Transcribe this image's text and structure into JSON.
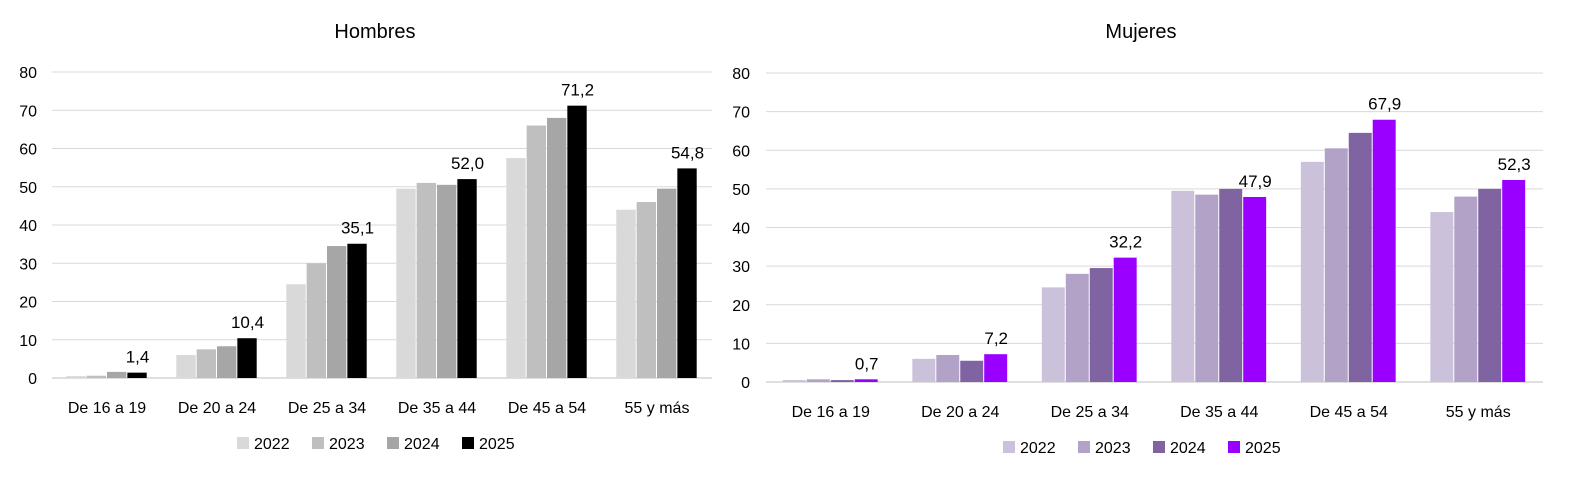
{
  "chart_data": [
    {
      "type": "bar",
      "title": "Hombres",
      "categories": [
        "De 16 a 19",
        "De 20 a 24",
        "De 25 a 34",
        "De 35 a 44",
        "De 45 a 54",
        "55 y más"
      ],
      "ylim": [
        0,
        80
      ],
      "yticks": [
        "0",
        "10",
        "20",
        "30",
        "40",
        "50",
        "60",
        "70",
        "80"
      ],
      "grid": true,
      "legend_position": "bottom",
      "series": [
        {
          "name": "2022",
          "color": "#d9d9d9",
          "values": [
            0.5,
            6.0,
            24.5,
            49.5,
            57.5,
            44.0
          ]
        },
        {
          "name": "2023",
          "color": "#bfbfbf",
          "values": [
            0.6,
            7.5,
            30.0,
            51.0,
            66.0,
            46.0
          ]
        },
        {
          "name": "2024",
          "color": "#a6a6a6",
          "values": [
            1.6,
            8.3,
            34.5,
            50.5,
            68.0,
            49.5
          ]
        },
        {
          "name": "2025",
          "color": "#000000",
          "values": [
            1.4,
            10.4,
            35.1,
            52.0,
            71.2,
            54.8
          ]
        }
      ],
      "data_labels": [
        "1,4",
        "10,4",
        "35,1",
        "52,0",
        "71,2",
        "54,8"
      ]
    },
    {
      "type": "bar",
      "title": "Mujeres",
      "categories": [
        "De 16 a 19",
        "De 20 a 24",
        "De 25 a 34",
        "De 35 a 44",
        "De 45 a 54",
        "55 y más"
      ],
      "ylim": [
        0,
        80
      ],
      "yticks": [
        "0",
        "10",
        "20",
        "30",
        "40",
        "50",
        "60",
        "70",
        "80"
      ],
      "grid": true,
      "legend_position": "bottom",
      "series": [
        {
          "name": "2022",
          "color": "#ccc1da",
          "values": [
            0.5,
            6.0,
            24.5,
            49.5,
            57.0,
            44.0
          ]
        },
        {
          "name": "2023",
          "color": "#b3a2c7",
          "values": [
            0.7,
            7.0,
            28.0,
            48.5,
            60.5,
            48.0
          ]
        },
        {
          "name": "2024",
          "color": "#8064a2",
          "values": [
            0.5,
            5.5,
            29.5,
            50.0,
            64.5,
            50.0
          ]
        },
        {
          "name": "2025",
          "color": "#9900ff",
          "values": [
            0.7,
            7.2,
            32.2,
            47.9,
            67.9,
            52.3
          ]
        }
      ],
      "data_labels": [
        "0,7",
        "7,2",
        "32,2",
        "47,9",
        "67,9",
        "52,3"
      ]
    }
  ]
}
